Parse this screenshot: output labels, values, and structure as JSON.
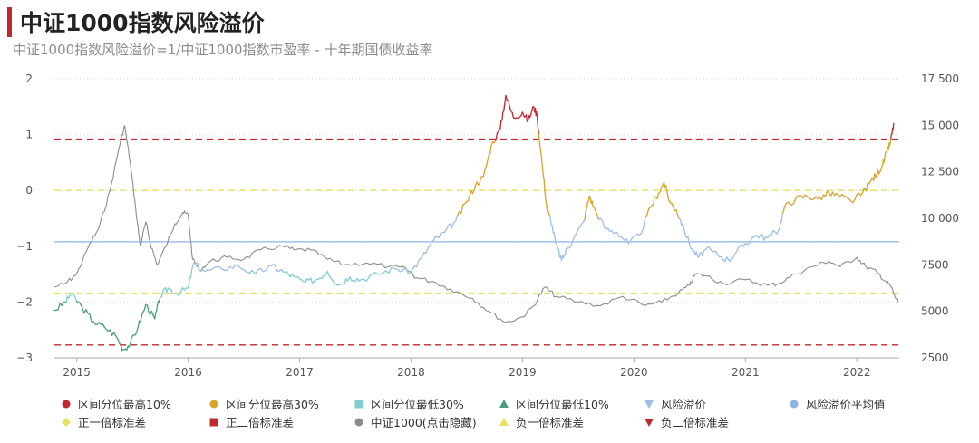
{
  "header": {
    "title": "中证1000指数风险溢价",
    "subtitle": "中证1000指数风险溢价=1/中证1000指数市盈率 - 十年期国债收益率"
  },
  "colors": {
    "top10": "#c0282d",
    "top30": "#d6a52a",
    "low30": "#7fcfcf",
    "low10": "#4a9e77",
    "premium": "#9fc0e6",
    "mean": "#8fb3e3",
    "plus1": "#e8e060",
    "plus2": "#c0282d",
    "index": "#8c8c8c",
    "minus1": "#e8e060",
    "minus2": "#c0282d"
  },
  "legend": [
    {
      "label": "区间分位最高10%",
      "marker": "circle-icon",
      "color": "#c0282d"
    },
    {
      "label": "区间分位最高30%",
      "marker": "circle-icon",
      "color": "#d6a52a"
    },
    {
      "label": "区间分位最低30%",
      "marker": "square-icon",
      "color": "#7fcfcf"
    },
    {
      "label": "区间分位最低10%",
      "marker": "triangle-up-icon",
      "color": "#4a9e77"
    },
    {
      "label": "风险溢价",
      "marker": "triangle-down-icon",
      "color": "#9fc0e6"
    },
    {
      "label": "风险溢价平均值",
      "marker": "circle-icon",
      "color": "#8fb3e3"
    },
    {
      "label": "正一倍标准差",
      "marker": "diamond-icon",
      "color": "#e8e060"
    },
    {
      "label": "正二倍标准差",
      "marker": "square-icon",
      "color": "#c0282d"
    },
    {
      "label": "中证1000(点击隐藏)",
      "marker": "circle-icon",
      "color": "#8c8c8c"
    },
    {
      "label": "负一倍标准差",
      "marker": "triangle-up-icon",
      "color": "#e8e060"
    },
    {
      "label": "负二倍标准差",
      "marker": "triangle-down-icon",
      "color": "#c0282d"
    }
  ],
  "chart_data": {
    "type": "line",
    "x_ticks": [
      "2015",
      "2016",
      "2017",
      "2018",
      "2019",
      "2020",
      "2021",
      "2022"
    ],
    "x_range": [
      2014.8,
      2022.38
    ],
    "y_left_ticks": [
      "2",
      "1",
      "0",
      "−1",
      "−2",
      "−3"
    ],
    "y_left_range": [
      -3,
      2
    ],
    "y_right_ticks": [
      "17 500",
      "15 000",
      "12 500",
      "10 000",
      "7500",
      "5000",
      "2500"
    ],
    "y_right_range": [
      2500,
      17500
    ],
    "reference_lines": {
      "mean": -0.92,
      "plus1": 0.0,
      "plus2": 0.92,
      "minus1": -1.84,
      "minus2": -2.77
    },
    "percentile_thresholds": {
      "top10": 0.92,
      "top30": -0.47,
      "low30": -1.45,
      "low10": -1.95
    },
    "series": [
      {
        "name": "风险溢价",
        "points": [
          [
            2014.8,
            -2.15
          ],
          [
            2014.9,
            -2.0
          ],
          [
            2014.95,
            -1.85
          ],
          [
            2015.05,
            -2.1
          ],
          [
            2015.15,
            -2.35
          ],
          [
            2015.25,
            -2.45
          ],
          [
            2015.35,
            -2.6
          ],
          [
            2015.42,
            -2.85
          ],
          [
            2015.48,
            -2.75
          ],
          [
            2015.55,
            -2.45
          ],
          [
            2015.62,
            -2.05
          ],
          [
            2015.7,
            -2.3
          ],
          [
            2015.75,
            -1.9
          ],
          [
            2015.82,
            -1.75
          ],
          [
            2015.9,
            -1.85
          ],
          [
            2016.0,
            -1.75
          ],
          [
            2016.05,
            -1.3
          ],
          [
            2016.15,
            -1.45
          ],
          [
            2016.3,
            -1.4
          ],
          [
            2016.45,
            -1.35
          ],
          [
            2016.6,
            -1.5
          ],
          [
            2016.75,
            -1.35
          ],
          [
            2016.85,
            -1.45
          ],
          [
            2016.95,
            -1.55
          ],
          [
            2017.05,
            -1.65
          ],
          [
            2017.15,
            -1.6
          ],
          [
            2017.25,
            -1.45
          ],
          [
            2017.35,
            -1.7
          ],
          [
            2017.45,
            -1.55
          ],
          [
            2017.55,
            -1.6
          ],
          [
            2017.7,
            -1.5
          ],
          [
            2017.85,
            -1.4
          ],
          [
            2018.0,
            -1.45
          ],
          [
            2018.1,
            -1.2
          ],
          [
            2018.2,
            -0.9
          ],
          [
            2018.3,
            -0.75
          ],
          [
            2018.4,
            -0.55
          ],
          [
            2018.5,
            -0.2
          ],
          [
            2018.58,
            0.1
          ],
          [
            2018.65,
            0.25
          ],
          [
            2018.72,
            0.8
          ],
          [
            2018.8,
            1.1
          ],
          [
            2018.85,
            1.7
          ],
          [
            2018.92,
            1.3
          ],
          [
            2019.0,
            1.4
          ],
          [
            2019.05,
            1.25
          ],
          [
            2019.1,
            1.5
          ],
          [
            2019.13,
            1.35
          ],
          [
            2019.18,
            0.4
          ],
          [
            2019.22,
            -0.35
          ],
          [
            2019.25,
            -0.5
          ],
          [
            2019.3,
            -0.95
          ],
          [
            2019.35,
            -1.25
          ],
          [
            2019.4,
            -1.05
          ],
          [
            2019.45,
            -0.9
          ],
          [
            2019.55,
            -0.55
          ],
          [
            2019.6,
            -0.1
          ],
          [
            2019.65,
            -0.35
          ],
          [
            2019.75,
            -0.7
          ],
          [
            2019.85,
            -0.75
          ],
          [
            2019.95,
            -0.95
          ],
          [
            2020.05,
            -0.8
          ],
          [
            2020.15,
            -0.3
          ],
          [
            2020.22,
            -0.05
          ],
          [
            2020.27,
            0.15
          ],
          [
            2020.32,
            -0.2
          ],
          [
            2020.38,
            -0.35
          ],
          [
            2020.45,
            -0.7
          ],
          [
            2020.52,
            -1.05
          ],
          [
            2020.58,
            -1.2
          ],
          [
            2020.65,
            -1.05
          ],
          [
            2020.75,
            -1.15
          ],
          [
            2020.85,
            -1.25
          ],
          [
            2020.92,
            -1.1
          ],
          [
            2021.0,
            -0.95
          ],
          [
            2021.1,
            -0.8
          ],
          [
            2021.2,
            -0.85
          ],
          [
            2021.3,
            -0.7
          ],
          [
            2021.35,
            -0.3
          ],
          [
            2021.45,
            -0.15
          ],
          [
            2021.55,
            -0.1
          ],
          [
            2021.65,
            -0.15
          ],
          [
            2021.75,
            -0.05
          ],
          [
            2021.85,
            -0.1
          ],
          [
            2021.95,
            -0.2
          ],
          [
            2022.05,
            -0.05
          ],
          [
            2022.12,
            0.15
          ],
          [
            2022.18,
            0.3
          ],
          [
            2022.23,
            0.45
          ],
          [
            2022.27,
            0.7
          ],
          [
            2022.3,
            0.85
          ],
          [
            2022.33,
            1.2
          ]
        ]
      },
      {
        "name": "中证1000(点击隐藏)",
        "points": [
          [
            2014.8,
            6300
          ],
          [
            2014.9,
            6500
          ],
          [
            2015.0,
            7000
          ],
          [
            2015.1,
            8400
          ],
          [
            2015.2,
            9500
          ],
          [
            2015.3,
            11500
          ],
          [
            2015.38,
            13800
          ],
          [
            2015.43,
            15000
          ],
          [
            2015.48,
            13000
          ],
          [
            2015.53,
            10500
          ],
          [
            2015.57,
            8500
          ],
          [
            2015.62,
            9800
          ],
          [
            2015.66,
            8700
          ],
          [
            2015.72,
            7500
          ],
          [
            2015.8,
            8500
          ],
          [
            2015.88,
            9700
          ],
          [
            2015.95,
            10300
          ],
          [
            2016.0,
            10200
          ],
          [
            2016.04,
            7800
          ],
          [
            2016.1,
            7200
          ],
          [
            2016.2,
            7700
          ],
          [
            2016.35,
            7900
          ],
          [
            2016.5,
            7800
          ],
          [
            2016.65,
            8300
          ],
          [
            2016.85,
            8500
          ],
          [
            2016.95,
            8300
          ],
          [
            2017.1,
            8300
          ],
          [
            2017.25,
            7800
          ],
          [
            2017.4,
            7500
          ],
          [
            2017.6,
            7600
          ],
          [
            2017.8,
            7400
          ],
          [
            2017.95,
            7300
          ],
          [
            2018.05,
            6800
          ],
          [
            2018.2,
            6600
          ],
          [
            2018.35,
            6200
          ],
          [
            2018.55,
            5700
          ],
          [
            2018.7,
            5000
          ],
          [
            2018.85,
            4400
          ],
          [
            2019.0,
            4700
          ],
          [
            2019.1,
            5300
          ],
          [
            2019.2,
            6300
          ],
          [
            2019.3,
            5800
          ],
          [
            2019.5,
            5500
          ],
          [
            2019.7,
            5300
          ],
          [
            2019.9,
            5800
          ],
          [
            2020.1,
            5300
          ],
          [
            2020.25,
            5500
          ],
          [
            2020.4,
            6000
          ],
          [
            2020.5,
            6400
          ],
          [
            2020.55,
            7000
          ],
          [
            2020.65,
            6900
          ],
          [
            2020.8,
            6500
          ],
          [
            2021.0,
            6700
          ],
          [
            2021.2,
            6400
          ],
          [
            2021.3,
            6500
          ],
          [
            2021.45,
            7000
          ],
          [
            2021.6,
            7400
          ],
          [
            2021.75,
            7700
          ],
          [
            2021.85,
            7400
          ],
          [
            2022.0,
            7900
          ],
          [
            2022.08,
            7400
          ],
          [
            2022.18,
            7100
          ],
          [
            2022.26,
            6600
          ],
          [
            2022.31,
            6300
          ],
          [
            2022.34,
            5800
          ],
          [
            2022.37,
            5500
          ]
        ]
      }
    ]
  }
}
